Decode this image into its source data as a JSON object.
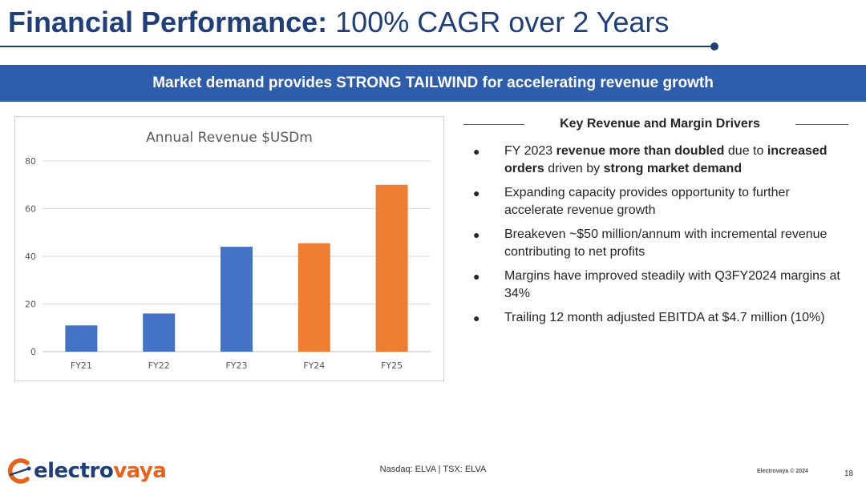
{
  "header": {
    "title_bold": "Financial Performance:",
    "title_light": "100% CAGR over 2 Years"
  },
  "banner": {
    "text": "Market demand provides STRONG TAILWIND for accelerating revenue growth"
  },
  "chart_data": {
    "type": "bar",
    "title": "Annual Revenue $USDm",
    "categories": [
      "FY21",
      "FY22",
      "FY23",
      "FY24",
      "FY25"
    ],
    "values": [
      11,
      16,
      44,
      45.5,
      70
    ],
    "bar_colors": [
      "#4472c4",
      "#4472c4",
      "#4472c4",
      "#ed7d31",
      "#ed7d31"
    ],
    "ylim": [
      0,
      80
    ],
    "yticks": [
      0,
      20,
      40,
      60,
      80
    ],
    "xlabel": "",
    "ylabel": "",
    "grid": true,
    "legend": "none"
  },
  "drivers": {
    "title": "Key Revenue and Margin Drivers",
    "items": [
      {
        "parts": [
          {
            "t": "FY 2023 ",
            "b": false
          },
          {
            "t": "revenue more than doubled",
            "b": true
          },
          {
            "t": " due to ",
            "b": false
          },
          {
            "t": "increased orders",
            "b": true
          },
          {
            "t": " driven by ",
            "b": false
          },
          {
            "t": "strong market demand",
            "b": true
          }
        ]
      },
      {
        "parts": [
          {
            "t": "Expanding capacity provides opportunity to further accelerate revenue growth",
            "b": false
          }
        ]
      },
      {
        "parts": [
          {
            "t": "Breakeven ~$50 million/annum with incremental revenue contributing to net profits",
            "b": false
          }
        ]
      },
      {
        "parts": [
          {
            "t": "Margins have improved steadily with Q3FY2024 margins at 34%",
            "b": false
          }
        ]
      },
      {
        "parts": [
          {
            "t": "Trailing 12 month adjusted EBITDA at $4.7 million (10%)",
            "b": false
          }
        ]
      }
    ]
  },
  "footer": {
    "logo_part1": "electro",
    "logo_part2": "vaya",
    "exchange": "Nasdaq: ELVA | TSX: ELVA",
    "copyright": "Electrovaya © 2024",
    "page": "18"
  },
  "colors": {
    "brand_blue": "#1f3f7a",
    "banner_blue": "#2e5eab",
    "brand_orange": "#e8621c"
  }
}
